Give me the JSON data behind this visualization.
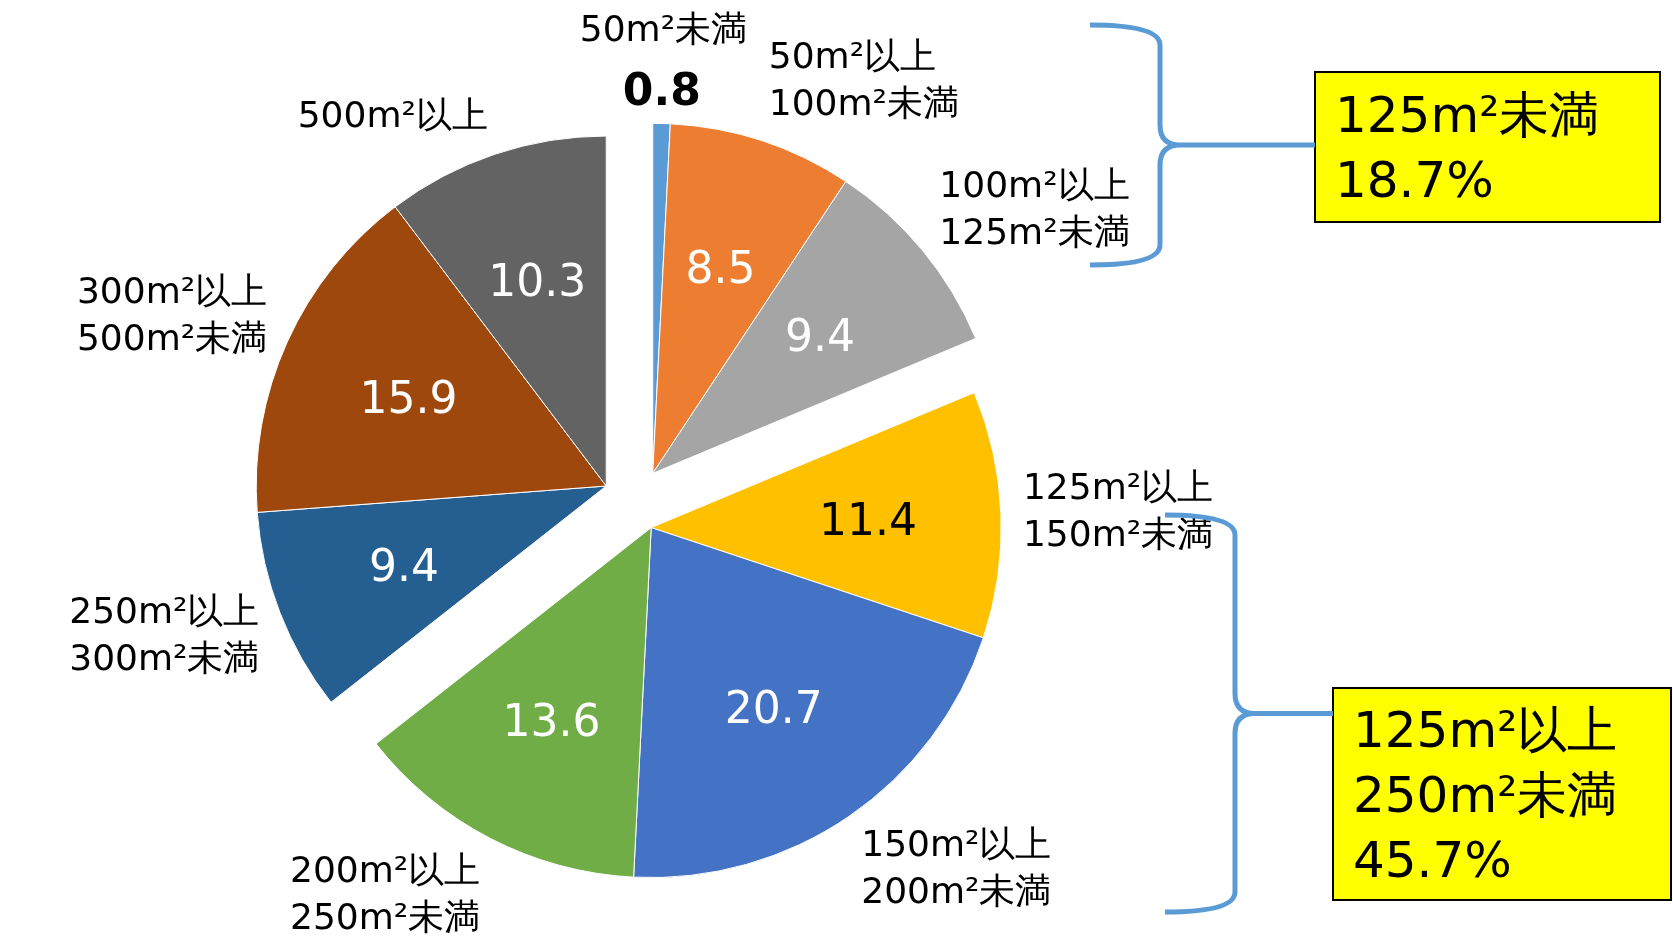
{
  "chart_data": {
    "type": "pie",
    "categories": [
      "50m²未満",
      "50m²以上\n100m²未満",
      "100m²以上\n125m²未満",
      "125m²以上\n150m²未満",
      "150m²以上\n200m²未満",
      "200m²以上\n250m²未満",
      "250m²以上\n300m²未満",
      "300m²以上\n500m²未満",
      "500m²以上"
    ],
    "values": [
      0.8,
      8.5,
      9.4,
      11.4,
      20.7,
      13.6,
      9.4,
      15.9,
      10.3
    ],
    "colors": [
      "#5b9bd5",
      "#ed7d31",
      "#a5a5a5",
      "#ffc000",
      "#4472c4",
      "#70ad47",
      "#255e91",
      "#9e480e",
      "#636363"
    ],
    "data_labels": true,
    "annotations": [
      "125m²未満\n18.7%",
      "125m²以上\n250m²未満\n45.7%"
    ]
  }
}
